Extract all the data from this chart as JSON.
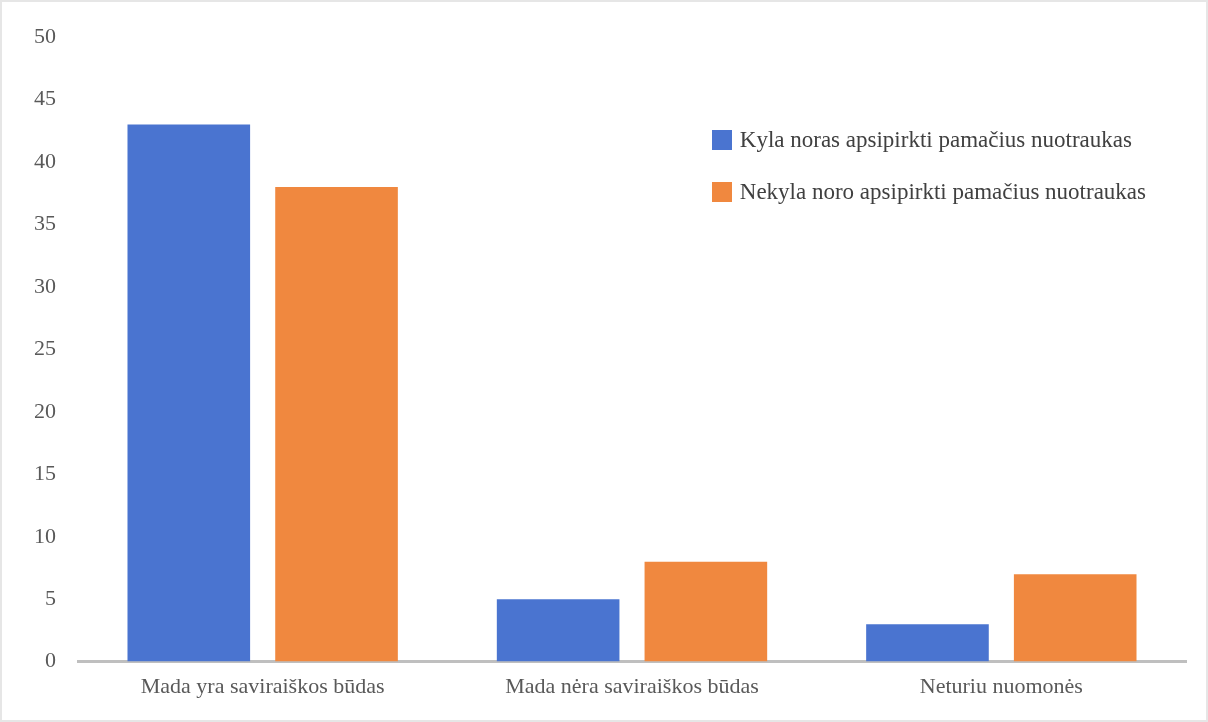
{
  "chart_data": {
    "type": "bar",
    "categories": [
      "Mada yra saviraiškos būdas",
      "Mada nėra saviraiškos būdas",
      "Neturiu nuomonės"
    ],
    "series": [
      {
        "name": "Kyla noras apsipirkti pamačius nuotraukas",
        "color": "#4a74d0",
        "values": [
          43,
          5,
          3
        ]
      },
      {
        "name": "Nekyla noro apsipirkti pamačius nuotraukas",
        "color": "#f0883f",
        "values": [
          38,
          8,
          7
        ]
      }
    ],
    "ylim": [
      0,
      50
    ],
    "yticks": [
      0,
      5,
      10,
      15,
      20,
      25,
      30,
      35,
      40,
      45,
      50
    ],
    "grid": false,
    "legend": "top right"
  }
}
